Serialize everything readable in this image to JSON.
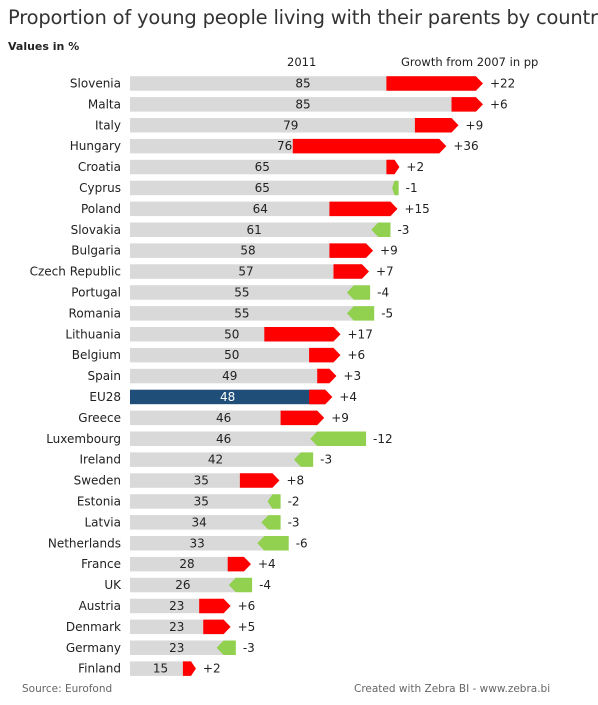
{
  "title": "Proportion of young people living with their parents by country",
  "subtitle": "Values in %",
  "headers": {
    "year": "2011",
    "growth": "Growth from 2007 in pp"
  },
  "footer": {
    "source": "Source: Eurofond",
    "credit": "Created with Zebra BI - www.zebra.bi"
  },
  "colors": {
    "bar": "#d9d9d9",
    "highlight": "#1f4e79",
    "increase": "#ff0000",
    "decrease": "#92d050",
    "text": "#222222"
  },
  "chart_data": {
    "type": "bar",
    "orientation": "horizontal",
    "highlight_category": "EU28",
    "categories": [
      "Slovenia",
      "Malta",
      "Italy",
      "Hungary",
      "Croatia",
      "Cyprus",
      "Poland",
      "Slovakia",
      "Bulgaria",
      "Czech Republic",
      "Portugal",
      "Romania",
      "Lithuania",
      "Belgium",
      "Spain",
      "EU28",
      "Greece",
      "Luxembourg",
      "Ireland",
      "Sweden",
      "Estonia",
      "Latvia",
      "Netherlands",
      "France",
      "UK",
      "Austria",
      "Denmark",
      "Germany",
      "Finland"
    ],
    "series": [
      {
        "name": "2011",
        "values": [
          85,
          85,
          79,
          76,
          65,
          65,
          64,
          61,
          58,
          57,
          55,
          55,
          50,
          50,
          49,
          48,
          46,
          46,
          42,
          35,
          35,
          34,
          33,
          28,
          26,
          23,
          23,
          23,
          15
        ]
      },
      {
        "name": "Growth from 2007 in pp",
        "values": [
          22,
          6,
          9,
          36,
          2,
          -1,
          15,
          -3,
          9,
          7,
          -4,
          -5,
          17,
          6,
          3,
          4,
          9,
          -12,
          -3,
          8,
          -2,
          -3,
          -6,
          4,
          -4,
          6,
          5,
          -3,
          2
        ]
      }
    ],
    "growth_labels": [
      "+22",
      "+6",
      "+9",
      "+36",
      "+2",
      "-1",
      "+15",
      "-3",
      "+9",
      "+7",
      "-4",
      "-5",
      "+17",
      "+6",
      "+3",
      "+4",
      "+9",
      "-12",
      "-3",
      "+8",
      "-2",
      "-3",
      "-6",
      "+4",
      "-4",
      "+6",
      "+5",
      "-3",
      "+2"
    ]
  }
}
